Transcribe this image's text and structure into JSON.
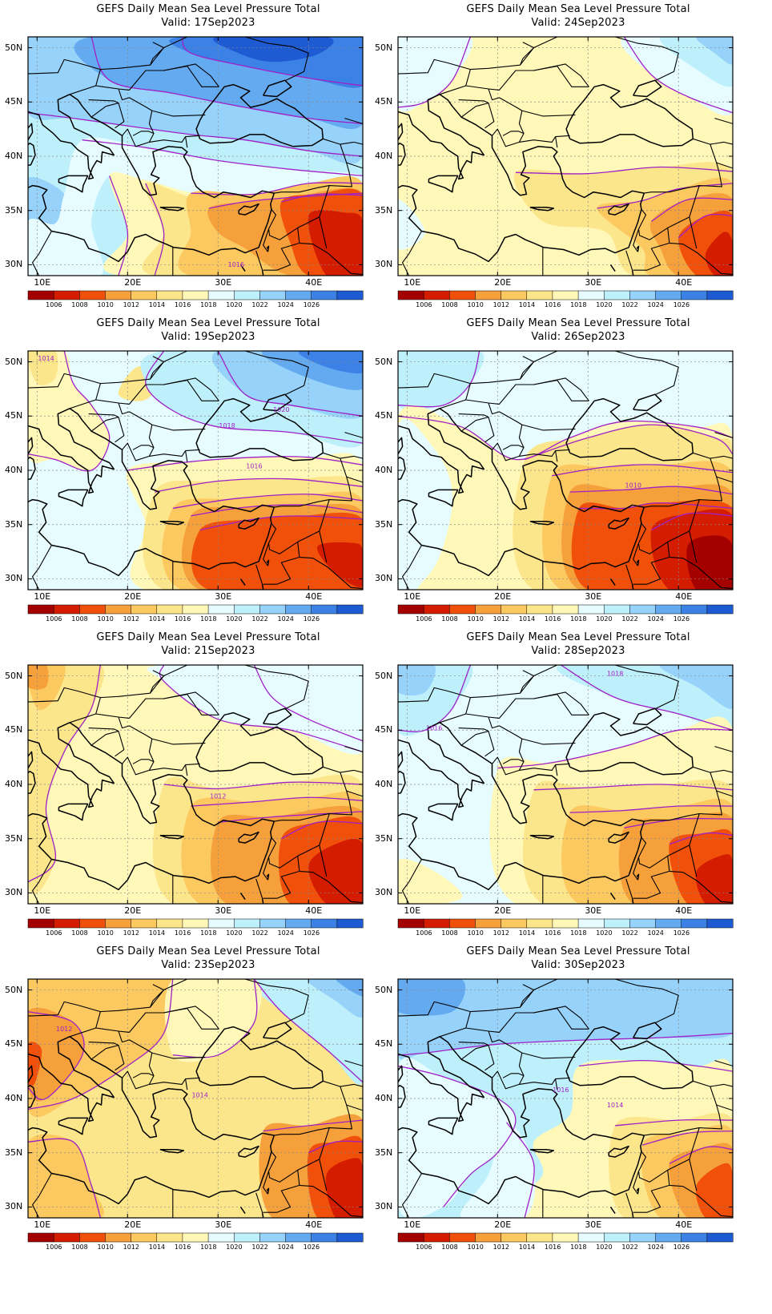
{
  "panels": [
    {
      "title": "GEFS Daily Mean Sea Level Pressure Total",
      "valid": "Valid: 17Sep2023",
      "pattern": 0,
      "contour_labels": [
        "1016"
      ]
    },
    {
      "title": "GEFS Daily Mean Sea Level Pressure Total",
      "valid": "Valid: 24Sep2023",
      "pattern": 1,
      "contour_labels": []
    },
    {
      "title": "GEFS Daily Mean Sea Level Pressure Total",
      "valid": "Valid: 19Sep2023",
      "pattern": 2,
      "contour_labels": [
        "1014",
        "1020",
        "1018",
        "1016"
      ]
    },
    {
      "title": "GEFS Daily Mean Sea Level Pressure Total",
      "valid": "Valid: 26Sep2023",
      "pattern": 3,
      "contour_labels": [
        "1010"
      ]
    },
    {
      "title": "GEFS Daily Mean Sea Level Pressure Total",
      "valid": "Valid: 21Sep2023",
      "pattern": 4,
      "contour_labels": [
        "1012"
      ]
    },
    {
      "title": "GEFS Daily Mean Sea Level Pressure Total",
      "valid": "Valid: 28Sep2023",
      "pattern": 5,
      "contour_labels": [
        "1018",
        "1016"
      ]
    },
    {
      "title": "GEFS Daily Mean Sea Level Pressure Total",
      "valid": "Valid: 23Sep2023",
      "pattern": 6,
      "contour_labels": [
        "1012",
        "1014"
      ]
    },
    {
      "title": "GEFS Daily Mean Sea Level Pressure Total",
      "valid": "Valid: 30Sep2023",
      "pattern": 7,
      "contour_labels": [
        "1016",
        "1014"
      ]
    }
  ],
  "lat_labels": [
    "50N",
    "45N",
    "40N",
    "35N",
    "30N"
  ],
  "lon_labels": [
    "10E",
    "20E",
    "30E",
    "40E"
  ],
  "colorbar": {
    "labels": [
      "1006",
      "1008",
      "1010",
      "1012",
      "1014",
      "1016",
      "1018",
      "1020",
      "1022",
      "1024",
      "1026"
    ],
    "colors": [
      "#a50000",
      "#d41c00",
      "#f0500a",
      "#f6a03c",
      "#fcc860",
      "#fce68c",
      "#fff8b8",
      "#e6fcff",
      "#bef0fc",
      "#96d2fa",
      "#64aaf0",
      "#3c82e6",
      "#1e5ad2"
    ]
  },
  "contour_color": "#a020c8"
}
